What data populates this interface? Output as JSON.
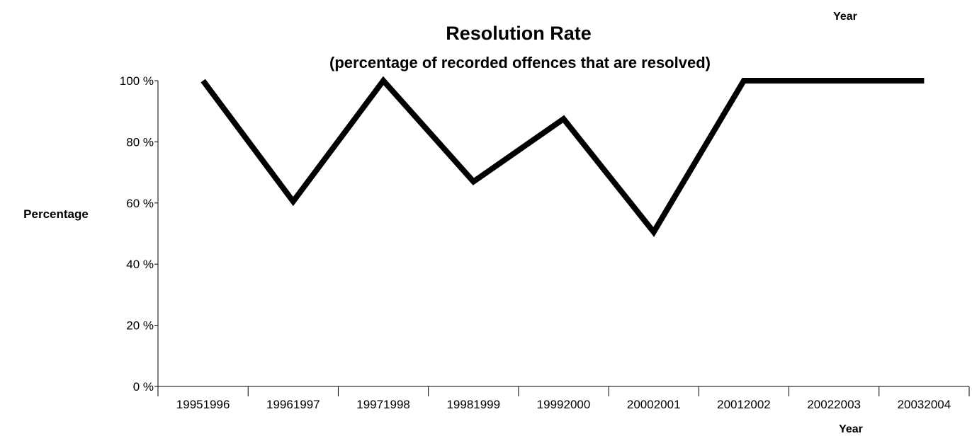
{
  "chart_data": {
    "type": "line",
    "title": "Resolution Rate",
    "subtitle": "(percentage of recorded offences that are resolved)",
    "xlabel": "Year",
    "xlabel_top": "Year",
    "ylabel": "Percentage",
    "categories": [
      "19951996",
      "19961997",
      "19971998",
      "19981999",
      "19992000",
      "20002001",
      "20012002",
      "20022003",
      "20032004"
    ],
    "series": [
      {
        "values": [
          100,
          60.5,
          100,
          67,
          87.5,
          50.5,
          100,
          100,
          100
        ],
        "color": "#000000"
      }
    ],
    "ylim": [
      0,
      100
    ],
    "yticks": [
      0,
      20,
      40,
      60,
      80,
      100
    ],
    "ytick_labels": [
      "0 %",
      "20 %",
      "40 %",
      "60 %",
      "80 %",
      "100 %"
    ],
    "grid": false,
    "legend": "none"
  }
}
